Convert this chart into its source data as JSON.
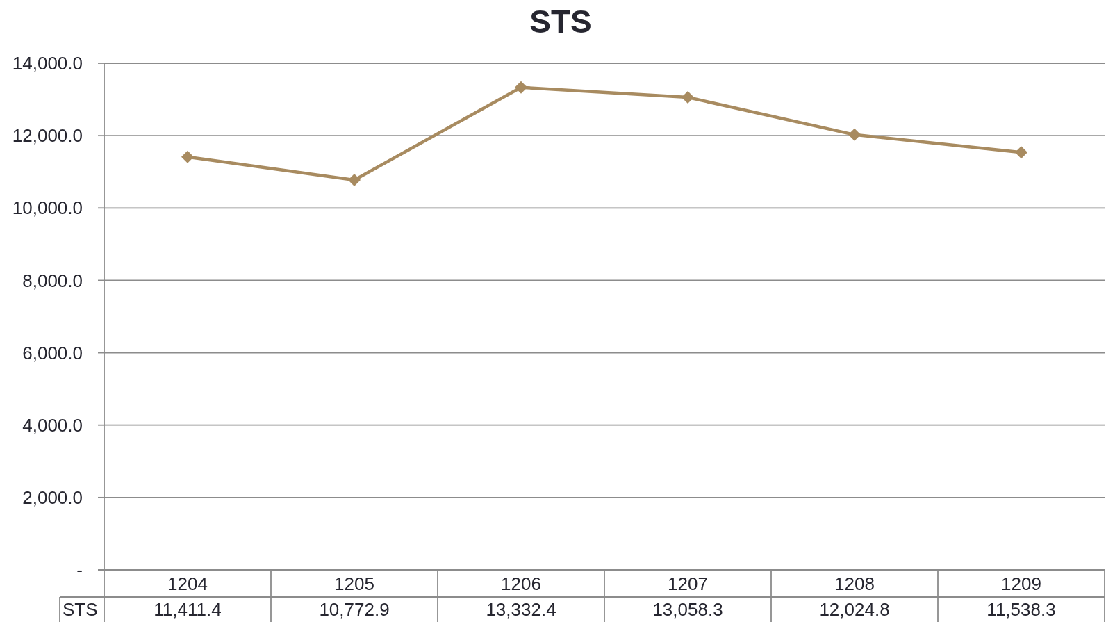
{
  "chart_data": {
    "type": "line",
    "title": "STS",
    "categories": [
      "1204",
      "1205",
      "1206",
      "1207",
      "1208",
      "1209"
    ],
    "series": [
      {
        "name": "STS",
        "color": "#a88b60",
        "values": [
          11411.4,
          10772.9,
          13332.4,
          13058.3,
          12024.8,
          11538.3
        ],
        "value_labels": [
          "11,411.4",
          "10,772.9",
          "13,332.4",
          "13,058.3",
          "12,024.8",
          "11,538.3"
        ]
      }
    ],
    "ylim": [
      0,
      14000
    ],
    "yticks": [
      {
        "value": 0,
        "label": "-"
      },
      {
        "value": 2000,
        "label": "2,000.0"
      },
      {
        "value": 4000,
        "label": "4,000.0"
      },
      {
        "value": 6000,
        "label": "6,000.0"
      },
      {
        "value": 8000,
        "label": "8,000.0"
      },
      {
        "value": 10000,
        "label": "10,000.0"
      },
      {
        "value": 12000,
        "label": "12,000.0"
      },
      {
        "value": 14000,
        "label": "14,000.0"
      }
    ],
    "grid": "y",
    "marker": "diamond",
    "line_style": "solid"
  }
}
